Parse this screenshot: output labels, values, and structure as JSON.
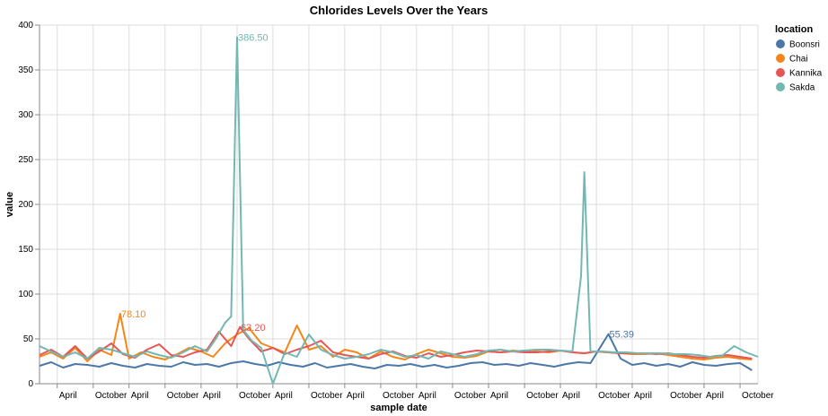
{
  "chart_data": {
    "type": "line",
    "title": "Chlorides Levels Over the Years",
    "xlabel": "sample date",
    "ylabel": "value",
    "ylim": [
      0,
      400
    ],
    "yticks": [
      0,
      50,
      100,
      150,
      200,
      250,
      300,
      350,
      400
    ],
    "x_tick_labels": [
      "April",
      "October",
      "April",
      "October",
      "April",
      "October",
      "April",
      "October",
      "April",
      "October",
      "April",
      "October",
      "April",
      "October",
      "April",
      "October",
      "April",
      "October",
      "April",
      "October"
    ],
    "x_tick_dates": [
      "1998-04-01",
      "1998-10-01",
      "1999-04-01",
      "1999-10-01",
      "2000-04-01",
      "2000-10-01",
      "2001-04-01",
      "2001-10-01",
      "2002-04-01",
      "2002-10-01",
      "2003-04-01",
      "2003-10-01",
      "2004-04-01",
      "2004-10-01",
      "2005-04-01",
      "2005-10-01",
      "2006-04-01",
      "2006-10-01",
      "2007-04-01",
      "2007-10-01"
    ],
    "xlim": [
      "1998-01-01",
      "2007-12-31"
    ],
    "grid": true,
    "legend": {
      "title": "location",
      "placement": "right"
    },
    "annotations": [
      {
        "text": "386.50",
        "series": "Sakda",
        "x": "2000-10-01",
        "y": 386.5
      },
      {
        "text": "78.10",
        "series": "Chai",
        "x": "1999-02-15",
        "y": 78.1
      },
      {
        "text": "63.20",
        "series": "Kannika",
        "x": "2000-10-15",
        "y": 63.2
      },
      {
        "text": "55.39",
        "series": "Boonsri",
        "x": "2005-12-01",
        "y": 55.39
      }
    ],
    "series": [
      {
        "name": "Boonsri",
        "color": "#4c78a8",
        "x": [
          "1998-01-01",
          "1998-03-01",
          "1998-05-01",
          "1998-07-01",
          "1998-09-01",
          "1998-11-01",
          "1999-01-01",
          "1999-03-01",
          "1999-05-01",
          "1999-07-01",
          "1999-09-01",
          "1999-11-01",
          "2000-01-01",
          "2000-03-01",
          "2000-05-01",
          "2000-07-01",
          "2000-09-01",
          "2000-11-01",
          "2001-01-01",
          "2001-03-01",
          "2001-05-01",
          "2001-07-01",
          "2001-09-01",
          "2001-11-01",
          "2002-01-01",
          "2002-03-01",
          "2002-05-01",
          "2002-07-01",
          "2002-09-01",
          "2002-11-01",
          "2003-01-01",
          "2003-03-01",
          "2003-05-01",
          "2003-07-01",
          "2003-09-01",
          "2003-11-01",
          "2004-01-01",
          "2004-03-01",
          "2004-05-01",
          "2004-07-01",
          "2004-09-01",
          "2004-11-01",
          "2005-01-01",
          "2005-03-01",
          "2005-05-01",
          "2005-07-01",
          "2005-09-01",
          "2005-12-01",
          "2006-02-01",
          "2006-04-01",
          "2006-06-01",
          "2006-08-01",
          "2006-10-01",
          "2006-12-01",
          "2007-02-01",
          "2007-04-01",
          "2007-06-01",
          "2007-08-01",
          "2007-10-01",
          "2007-12-01"
        ],
        "values": [
          20,
          24,
          18,
          22,
          21,
          19,
          23,
          20,
          18,
          22,
          20,
          19,
          24,
          21,
          22,
          19,
          23,
          25,
          22,
          20,
          24,
          21,
          19,
          23,
          18,
          20,
          22,
          19,
          17,
          21,
          20,
          22,
          19,
          21,
          18,
          20,
          23,
          24,
          21,
          22,
          20,
          23,
          21,
          19,
          22,
          24,
          23,
          55.39,
          28,
          21,
          23,
          20,
          22,
          19,
          24,
          21,
          20,
          22,
          23,
          15
        ]
      },
      {
        "name": "Chai",
        "color": "#f58518",
        "x": [
          "1998-01-01",
          "1998-03-01",
          "1998-05-01",
          "1998-07-01",
          "1998-09-01",
          "1998-11-01",
          "1999-01-01",
          "1999-02-15",
          "1999-04-01",
          "1999-06-01",
          "1999-08-01",
          "1999-10-01",
          "1999-12-01",
          "2000-02-01",
          "2000-04-01",
          "2000-06-01",
          "2000-08-01",
          "2000-10-01",
          "2000-12-01",
          "2001-02-01",
          "2001-04-01",
          "2001-06-01",
          "2001-08-01",
          "2001-10-01",
          "2001-12-01",
          "2002-02-01",
          "2002-04-01",
          "2002-06-01",
          "2002-08-01",
          "2002-10-01",
          "2002-12-01",
          "2003-02-01",
          "2003-04-01",
          "2003-06-01",
          "2003-08-01",
          "2003-10-01",
          "2003-12-01",
          "2004-02-01",
          "2004-04-01",
          "2004-06-01",
          "2004-08-01",
          "2004-10-01",
          "2004-12-01",
          "2005-02-01",
          "2005-04-01",
          "2005-06-01",
          "2005-08-01",
          "2005-10-01",
          "2005-12-01",
          "2006-02-01",
          "2006-04-01",
          "2006-06-01",
          "2006-08-01",
          "2006-10-01",
          "2006-12-01",
          "2007-02-01",
          "2007-04-01",
          "2007-06-01",
          "2007-08-01",
          "2007-10-01",
          "2007-12-01"
        ],
        "values": [
          30,
          35,
          28,
          40,
          25,
          38,
          32,
          78.1,
          28,
          35,
          30,
          27,
          33,
          40,
          36,
          30,
          45,
          55,
          62,
          45,
          40,
          35,
          65,
          38,
          42,
          30,
          38,
          35,
          28,
          36,
          30,
          27,
          33,
          38,
          34,
          30,
          29,
          31,
          36,
          35,
          37,
          36,
          36,
          35,
          37,
          35,
          34,
          36,
          35,
          34,
          33,
          33,
          34,
          32,
          30,
          28,
          27,
          29,
          30,
          28,
          27
        ]
      },
      {
        "name": "Kannika",
        "color": "#e45756",
        "x": [
          "1998-01-01",
          "1998-03-01",
          "1998-05-01",
          "1998-07-01",
          "1998-09-01",
          "1998-11-01",
          "1999-01-01",
          "1999-03-01",
          "1999-05-01",
          "1999-07-01",
          "1999-09-01",
          "1999-11-01",
          "2000-01-01",
          "2000-03-01",
          "2000-05-01",
          "2000-07-01",
          "2000-09-01",
          "2000-10-15",
          "2000-12-01",
          "2001-02-01",
          "2001-04-01",
          "2001-06-01",
          "2001-08-01",
          "2001-10-01",
          "2001-12-01",
          "2002-02-01",
          "2002-04-01",
          "2002-06-01",
          "2002-08-01",
          "2002-10-01",
          "2002-12-01",
          "2003-02-01",
          "2003-04-01",
          "2003-06-01",
          "2003-08-01",
          "2003-10-01",
          "2003-12-01",
          "2004-02-01",
          "2004-04-01",
          "2004-06-01",
          "2004-08-01",
          "2004-10-01",
          "2004-12-01",
          "2005-02-01",
          "2005-04-01",
          "2005-06-01",
          "2005-08-01",
          "2005-10-01",
          "2005-12-01",
          "2006-02-01",
          "2006-04-01",
          "2006-06-01",
          "2006-08-01",
          "2006-10-01",
          "2006-12-01",
          "2007-02-01",
          "2007-04-01",
          "2007-06-01",
          "2007-08-01",
          "2007-10-01",
          "2007-12-01"
        ],
        "values": [
          32,
          38,
          30,
          42,
          28,
          36,
          45,
          33,
          29,
          38,
          44,
          32,
          30,
          35,
          38,
          58,
          42,
          63.2,
          50,
          36,
          40,
          33,
          38,
          42,
          48,
          35,
          32,
          30,
          28,
          33,
          36,
          31,
          29,
          34,
          30,
          32,
          35,
          37,
          36,
          35,
          36,
          35,
          35,
          36,
          37,
          35,
          34,
          36,
          35,
          34,
          34,
          34,
          33,
          34,
          32,
          30,
          29,
          31,
          32,
          30,
          28
        ]
      },
      {
        "name": "Sakda",
        "color": "#72b7b2",
        "x": [
          "1998-01-01",
          "1998-03-01",
          "1998-05-01",
          "1998-07-01",
          "1998-09-01",
          "1998-11-01",
          "1999-01-01",
          "1999-03-01",
          "1999-05-01",
          "1999-07-01",
          "1999-09-01",
          "1999-11-01",
          "2000-01-01",
          "2000-03-01",
          "2000-05-01",
          "2000-06-15",
          "2000-08-01",
          "2000-09-01",
          "2000-10-01",
          "2000-11-01",
          "2000-12-15",
          "2001-02-01",
          "2001-04-01",
          "2001-06-01",
          "2001-08-01",
          "2001-10-01",
          "2001-12-01",
          "2002-02-01",
          "2002-04-01",
          "2002-06-01",
          "2002-08-01",
          "2002-10-01",
          "2002-12-01",
          "2003-02-01",
          "2003-04-01",
          "2003-06-01",
          "2003-08-01",
          "2003-10-01",
          "2003-12-01",
          "2004-02-01",
          "2004-04-01",
          "2004-06-01",
          "2004-08-01",
          "2004-10-01",
          "2004-12-01",
          "2005-02-01",
          "2005-04-01",
          "2005-06-01",
          "2005-07-15",
          "2005-08-01",
          "2005-09-01",
          "2005-11-01",
          "2006-01-01",
          "2006-03-01",
          "2006-05-01",
          "2006-07-01",
          "2006-09-01",
          "2006-11-01",
          "2007-01-01",
          "2007-03-01",
          "2007-05-01",
          "2007-07-01",
          "2007-09-01",
          "2007-11-01",
          "2007-12-31"
        ],
        "values": [
          42,
          36,
          30,
          35,
          28,
          40,
          38,
          34,
          30,
          36,
          32,
          29,
          35,
          42,
          36,
          50,
          68,
          75,
          386.5,
          60,
          48,
          40,
          0,
          35,
          30,
          55,
          38,
          32,
          28,
          30,
          33,
          38,
          35,
          30,
          32,
          28,
          36,
          33,
          30,
          33,
          37,
          38,
          36,
          37,
          38,
          38,
          37,
          36,
          120,
          236,
          36,
          36,
          35,
          35,
          34,
          34,
          34,
          33,
          33,
          32,
          30,
          31,
          42,
          35,
          30
        ]
      }
    ]
  }
}
